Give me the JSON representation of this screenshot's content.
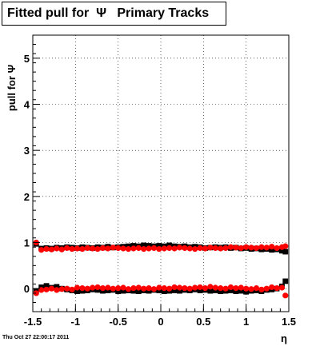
{
  "title": "Fitted pull for  Ψ   Primary Tracks",
  "timestamp": "Thu Oct 27 22:00:17 2011",
  "chart_data": {
    "type": "scatter",
    "title": "Fitted pull for  Ψ   Primary Tracks",
    "xlabel": "η",
    "ylabel": "pull for Ψ",
    "xlim": [
      -1.5,
      1.5
    ],
    "ylim": [
      -0.5,
      5.5
    ],
    "x_ticks": [
      "-1.5",
      "-1",
      "-0.5",
      "0",
      "0.5",
      "1",
      "1.5"
    ],
    "y_ticks": [
      "0",
      "1",
      "2",
      "3",
      "4",
      "5"
    ],
    "grid": true,
    "series": [
      {
        "color": "#000000",
        "marker": "square",
        "x": [
          -1.46,
          -1.4,
          -1.34,
          -1.28,
          -1.22,
          -1.16,
          -1.1,
          -1.04,
          -0.98,
          -0.92,
          -0.86,
          -0.8,
          -0.74,
          -0.68,
          -0.62,
          -0.56,
          -0.5,
          -0.44,
          -0.38,
          -0.32,
          -0.26,
          -0.2,
          -0.14,
          -0.08,
          -0.02,
          0.04,
          0.1,
          0.16,
          0.22,
          0.28,
          0.34,
          0.4,
          0.46,
          0.52,
          0.58,
          0.64,
          0.7,
          0.76,
          0.82,
          0.88,
          0.94,
          1.0,
          1.06,
          1.12,
          1.18,
          1.24,
          1.3,
          1.36,
          1.42,
          1.46
        ],
        "y": [
          0.97,
          0.87,
          0.88,
          0.87,
          0.89,
          0.88,
          0.9,
          0.89,
          0.88,
          0.9,
          0.89,
          0.88,
          0.9,
          0.89,
          0.91,
          0.89,
          0.9,
          0.91,
          0.92,
          0.93,
          0.92,
          0.94,
          0.93,
          0.92,
          0.93,
          0.92,
          0.94,
          0.92,
          0.91,
          0.92,
          0.9,
          0.91,
          0.9,
          0.88,
          0.89,
          0.9,
          0.89,
          0.9,
          0.88,
          0.89,
          0.87,
          0.88,
          0.86,
          0.87,
          0.85,
          0.86,
          0.84,
          0.85,
          0.82,
          0.8
        ]
      },
      {
        "color": "#ff0000",
        "marker": "circle",
        "x": [
          -1.46,
          -1.4,
          -1.34,
          -1.28,
          -1.22,
          -1.16,
          -1.1,
          -1.04,
          -0.98,
          -0.92,
          -0.86,
          -0.8,
          -0.74,
          -0.68,
          -0.62,
          -0.56,
          -0.5,
          -0.44,
          -0.38,
          -0.32,
          -0.26,
          -0.2,
          -0.14,
          -0.08,
          -0.02,
          0.04,
          0.1,
          0.16,
          0.22,
          0.28,
          0.34,
          0.4,
          0.46,
          0.52,
          0.58,
          0.64,
          0.7,
          0.76,
          0.82,
          0.88,
          0.94,
          1.0,
          1.06,
          1.12,
          1.18,
          1.24,
          1.3,
          1.36,
          1.42,
          1.46
        ],
        "y": [
          1.0,
          0.84,
          0.86,
          0.85,
          0.87,
          0.85,
          0.88,
          0.86,
          0.87,
          0.86,
          0.88,
          0.87,
          0.86,
          0.88,
          0.87,
          0.89,
          0.88,
          0.87,
          0.86,
          0.87,
          0.88,
          0.86,
          0.87,
          0.88,
          0.86,
          0.87,
          0.88,
          0.87,
          0.89,
          0.88,
          0.87,
          0.86,
          0.88,
          0.87,
          0.89,
          0.88,
          0.87,
          0.88,
          0.9,
          0.89,
          0.88,
          0.9,
          0.89,
          0.88,
          0.9,
          0.89,
          0.91,
          0.88,
          0.9,
          0.92
        ]
      },
      {
        "color": "#000000",
        "marker": "square",
        "x": [
          -1.46,
          -1.4,
          -1.34,
          -1.28,
          -1.22,
          -1.16,
          -1.1,
          -1.04,
          -0.98,
          -0.92,
          -0.86,
          -0.8,
          -0.74,
          -0.68,
          -0.62,
          -0.56,
          -0.5,
          -0.44,
          -0.38,
          -0.32,
          -0.26,
          -0.2,
          -0.14,
          -0.08,
          -0.02,
          0.04,
          0.1,
          0.16,
          0.22,
          0.28,
          0.34,
          0.4,
          0.46,
          0.52,
          0.58,
          0.64,
          0.7,
          0.76,
          0.82,
          0.88,
          0.94,
          1.0,
          1.06,
          1.12,
          1.18,
          1.24,
          1.3,
          1.36,
          1.42,
          1.46
        ],
        "y": [
          -0.05,
          0.03,
          0.06,
          0.02,
          0.04,
          0.0,
          -0.02,
          -0.04,
          -0.06,
          -0.05,
          -0.04,
          -0.02,
          -0.03,
          -0.05,
          -0.04,
          -0.03,
          -0.06,
          -0.05,
          -0.04,
          -0.05,
          -0.06,
          -0.04,
          -0.05,
          -0.03,
          -0.04,
          -0.06,
          -0.05,
          -0.04,
          -0.05,
          -0.03,
          -0.04,
          -0.02,
          -0.04,
          -0.03,
          -0.05,
          -0.04,
          -0.06,
          -0.05,
          -0.04,
          -0.06,
          -0.05,
          -0.07,
          -0.05,
          -0.04,
          -0.06,
          -0.03,
          -0.02,
          0.0,
          0.05,
          0.16
        ]
      },
      {
        "color": "#ff0000",
        "marker": "circle",
        "x": [
          -1.46,
          -1.4,
          -1.34,
          -1.28,
          -1.22,
          -1.16,
          -1.1,
          -1.04,
          -0.98,
          -0.92,
          -0.86,
          -0.8,
          -0.74,
          -0.68,
          -0.62,
          -0.56,
          -0.5,
          -0.44,
          -0.38,
          -0.32,
          -0.26,
          -0.2,
          -0.14,
          -0.08,
          -0.02,
          0.04,
          0.1,
          0.16,
          0.22,
          0.28,
          0.34,
          0.4,
          0.46,
          0.52,
          0.58,
          0.64,
          0.7,
          0.76,
          0.82,
          0.88,
          0.94,
          1.0,
          1.06,
          1.12,
          1.18,
          1.24,
          1.3,
          1.36,
          1.42,
          1.46
        ],
        "y": [
          -0.1,
          -0.03,
          -0.02,
          0.0,
          -0.03,
          -0.01,
          0.0,
          -0.02,
          0.02,
          0.01,
          0.0,
          0.02,
          0.03,
          0.01,
          0.02,
          0.0,
          0.01,
          0.02,
          -0.01,
          0.01,
          0.02,
          0.0,
          0.01,
          -0.01,
          0.02,
          0.01,
          0.0,
          0.03,
          0.02,
          0.01,
          0.0,
          0.02,
          0.03,
          0.01,
          0.04,
          0.02,
          0.01,
          0.0,
          0.03,
          0.01,
          0.02,
          0.0,
          -0.01,
          0.01,
          -0.02,
          0.0,
          0.03,
          0.01,
          0.02,
          -0.15
        ]
      }
    ]
  }
}
